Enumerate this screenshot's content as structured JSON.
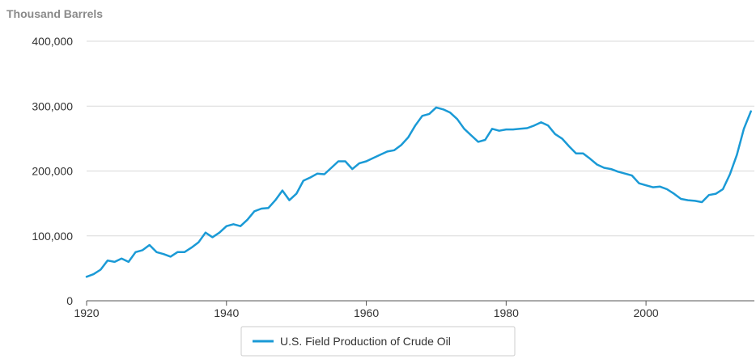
{
  "chart_data": {
    "type": "line",
    "title": "",
    "unit_label": "Thousand Barrels",
    "xlabel": "",
    "ylabel": "",
    "xlim": [
      1920,
      2015.5
    ],
    "ylim": [
      0,
      400000
    ],
    "x_ticks": [
      1920,
      1940,
      1960,
      1980,
      2000
    ],
    "x_tick_labels": [
      "1920",
      "1940",
      "1960",
      "1980",
      "2000"
    ],
    "y_ticks": [
      0,
      100000,
      200000,
      300000,
      400000
    ],
    "y_tick_labels": [
      "0",
      "100,000",
      "200,000",
      "300,000",
      "400,000"
    ],
    "grid": "horizontal",
    "legend_position": "bottom-center",
    "series_color": "#1a9ad6",
    "series": [
      {
        "name": "U.S. Field Production of Crude Oil",
        "x": [
          1920,
          1921,
          1922,
          1923,
          1924,
          1925,
          1926,
          1927,
          1928,
          1929,
          1930,
          1931,
          1932,
          1933,
          1934,
          1935,
          1936,
          1937,
          1938,
          1939,
          1940,
          1941,
          1942,
          1943,
          1944,
          1945,
          1946,
          1947,
          1948,
          1949,
          1950,
          1951,
          1952,
          1953,
          1954,
          1955,
          1956,
          1957,
          1958,
          1959,
          1960,
          1961,
          1962,
          1963,
          1964,
          1965,
          1966,
          1967,
          1968,
          1969,
          1970,
          1971,
          1972,
          1973,
          1974,
          1975,
          1976,
          1977,
          1978,
          1979,
          1980,
          1981,
          1982,
          1983,
          1984,
          1985,
          1986,
          1987,
          1988,
          1989,
          1990,
          1991,
          1992,
          1993,
          1994,
          1995,
          1996,
          1997,
          1998,
          1999,
          2000,
          2001,
          2002,
          2003,
          2004,
          2005,
          2006,
          2007,
          2008,
          2009,
          2010,
          2011,
          2012,
          2013,
          2014,
          2015
        ],
        "y": [
          37000,
          41000,
          48000,
          62000,
          60000,
          65000,
          60000,
          75000,
          78000,
          86000,
          75000,
          72000,
          68000,
          75000,
          75000,
          82000,
          90000,
          105000,
          98000,
          105000,
          115000,
          118000,
          115000,
          125000,
          138000,
          142000,
          143000,
          155000,
          170000,
          155000,
          165000,
          185000,
          190000,
          196000,
          195000,
          205000,
          215000,
          215000,
          203000,
          212000,
          215000,
          220000,
          225000,
          230000,
          232000,
          240000,
          252000,
          270000,
          285000,
          288000,
          298000,
          295000,
          290000,
          280000,
          265000,
          255000,
          245000,
          248000,
          265000,
          262000,
          264000,
          264000,
          265000,
          266000,
          270000,
          275000,
          270000,
          257000,
          250000,
          238000,
          227000,
          227000,
          219000,
          210000,
          205000,
          203000,
          199000,
          196000,
          193000,
          181000,
          178000,
          175000,
          176000,
          172000,
          165000,
          157000,
          155000,
          154000,
          152000,
          163000,
          165000,
          172000,
          195000,
          225000,
          265000,
          292000
        ]
      }
    ]
  }
}
